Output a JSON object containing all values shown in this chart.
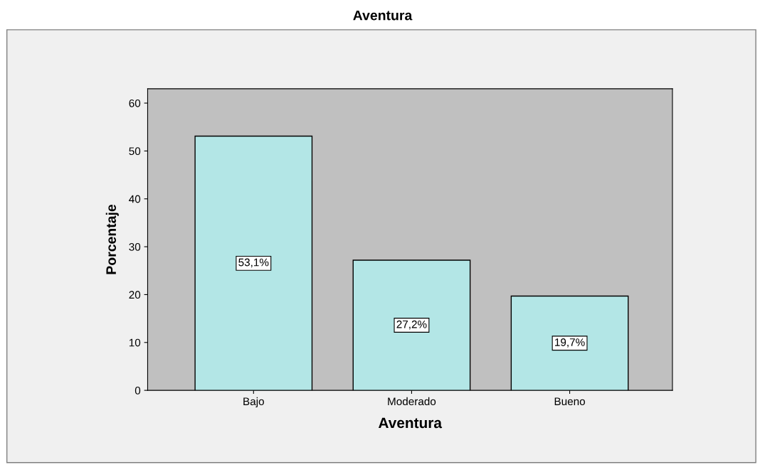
{
  "chart_data": {
    "type": "bar",
    "title": "Aventura",
    "xlabel": "Aventura",
    "ylabel": "Porcentaje",
    "categories": [
      "Bajo",
      "Moderado",
      "Bueno"
    ],
    "values": [
      53.1,
      27.2,
      19.7
    ],
    "value_labels": [
      "53,1%",
      "27,2%",
      "19,7%"
    ],
    "color": "#b3e6e6",
    "ylim": [
      0,
      63
    ],
    "yticks": [
      0,
      10,
      20,
      30,
      40,
      50,
      60
    ],
    "grid": false
  }
}
